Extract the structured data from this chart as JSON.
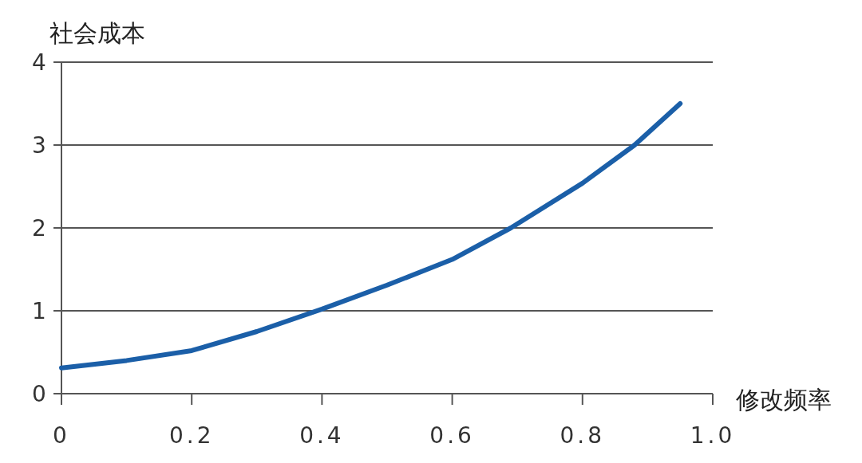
{
  "chart_data": {
    "type": "line",
    "xlabel": "修改频率",
    "ylabel": "社会成本",
    "x": [
      0,
      0.1,
      0.2,
      0.3,
      0.4,
      0.5,
      0.6,
      0.69,
      0.8,
      0.88,
      0.95
    ],
    "series": [
      {
        "color": "#1b5fa8",
        "values": [
          0.31,
          0.4,
          0.52,
          0.75,
          1.02,
          1.31,
          1.62,
          2.0,
          2.54,
          3.0,
          3.5
        ]
      }
    ],
    "xlim": [
      0,
      1
    ],
    "ylim": [
      0,
      4
    ],
    "xticks": [
      0,
      0.2,
      0.4,
      0.6,
      0.8,
      {
        "value": 1,
        "label": "1.0"
      }
    ],
    "yticks": [
      0,
      1,
      2,
      3,
      4
    ],
    "grid": "y",
    "marker": "none",
    "line_style": "solid"
  }
}
